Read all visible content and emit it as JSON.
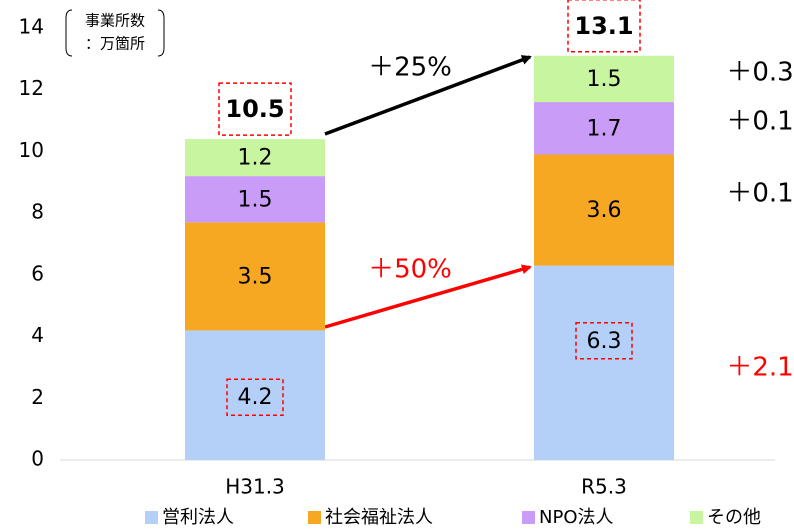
{
  "chart_data": {
    "type": "stacked_bar",
    "unit_label": [
      "事業所数",
      "：万箇所"
    ],
    "categories": [
      "H31.3",
      "R5.3"
    ],
    "series": [
      {
        "name": "営利法人",
        "color": "#b4cff8",
        "values": [
          4.2,
          6.3
        ]
      },
      {
        "name": "社会福祉法人",
        "color": "#f7a823",
        "values": [
          3.5,
          3.6
        ]
      },
      {
        "name": "NPO法人",
        "color": "#c99cf7",
        "values": [
          1.5,
          1.7
        ]
      },
      {
        "name": "その他",
        "color": "#c8f5a0",
        "values": [
          1.2,
          1.5
        ]
      }
    ],
    "totals": [
      10.5,
      13.1
    ],
    "annotations": [
      {
        "text": "＋25%",
        "color": "#000000"
      },
      {
        "text": "＋50%",
        "color": "#ff0000"
      },
      {
        "text": "＋0.3",
        "color": "#000000"
      },
      {
        "text": "＋0.1",
        "color": "#000000"
      },
      {
        "text": "＋0.1",
        "color": "#000000"
      },
      {
        "text": "＋2.1",
        "color": "#ff0000"
      }
    ],
    "ylim": [
      0,
      14
    ],
    "yticks": [
      0,
      2,
      4,
      6,
      8,
      10,
      12,
      14
    ],
    "grid": false
  }
}
